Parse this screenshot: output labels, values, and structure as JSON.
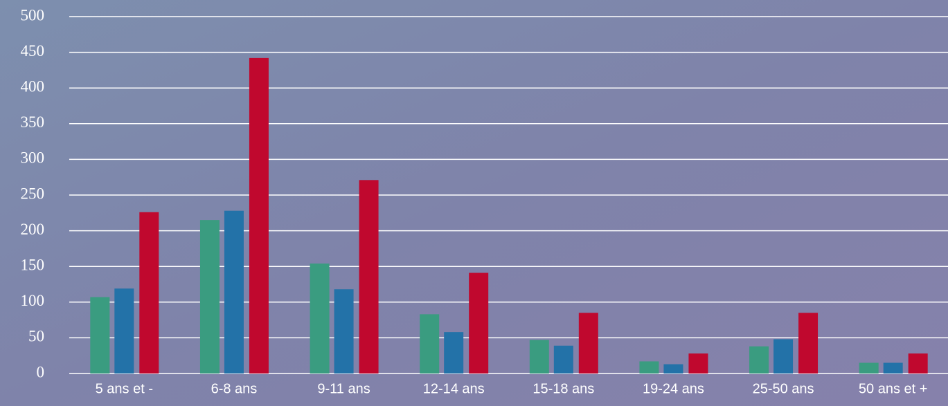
{
  "chart_data": {
    "type": "bar",
    "categories": [
      "5 ans et -",
      "6-8 ans",
      "9-11 ans",
      "12-14 ans",
      "15-18 ans",
      "19-24 ans",
      "25-50 ans",
      "50 ans et +"
    ],
    "series": [
      {
        "color": "#3a9c80",
        "values": [
          107,
          215,
          154,
          83,
          47,
          17,
          38,
          15
        ]
      },
      {
        "color": "#2372a8",
        "values": [
          119,
          228,
          118,
          58,
          39,
          13,
          48,
          15
        ]
      },
      {
        "color": "#c0082e",
        "values": [
          226,
          442,
          271,
          141,
          85,
          28,
          85,
          28
        ]
      }
    ],
    "ylim": [
      0,
      500
    ],
    "yticks": [
      0,
      50,
      100,
      150,
      200,
      250,
      300,
      350,
      400,
      450,
      500
    ],
    "grid": true
  }
}
